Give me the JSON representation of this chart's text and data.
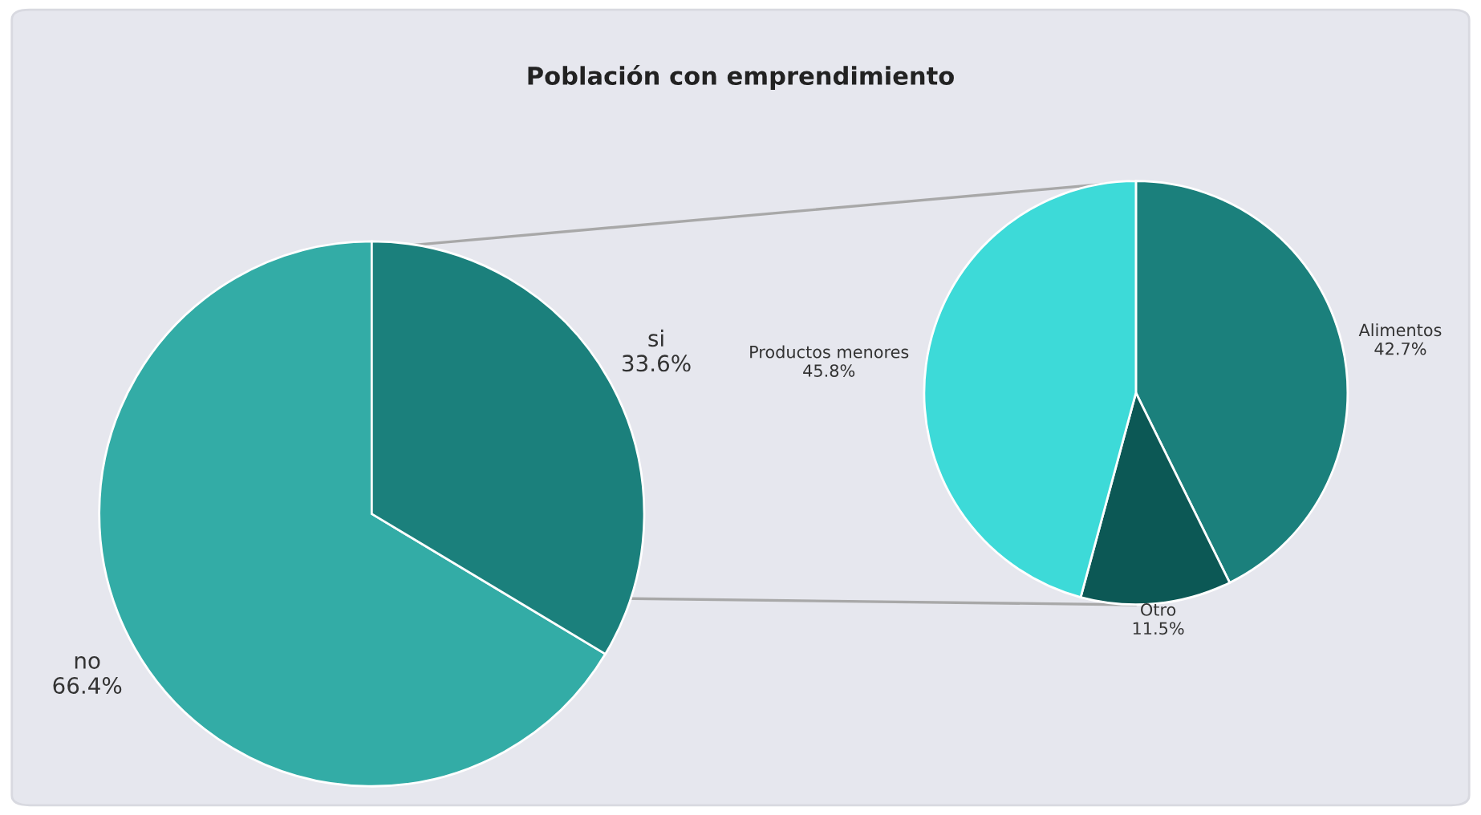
{
  "chart_data": [
    {
      "type": "pie",
      "title": "Población con emprendimiento",
      "categories": [
        "no",
        "si"
      ],
      "values": [
        66.4,
        33.6
      ],
      "colors": [
        "#33aca6",
        "#1b807c"
      ],
      "value_labels": [
        "66.4%",
        "33.6%"
      ]
    },
    {
      "type": "pie",
      "categories": [
        "Alimentos",
        "Otro",
        "Productos menores"
      ],
      "values": [
        42.7,
        11.5,
        45.8
      ],
      "colors": [
        "#1b807c",
        "#0c5855",
        "#3ddad8"
      ],
      "value_labels": [
        "42.7%",
        "11.5%",
        "45.8%"
      ]
    }
  ]
}
